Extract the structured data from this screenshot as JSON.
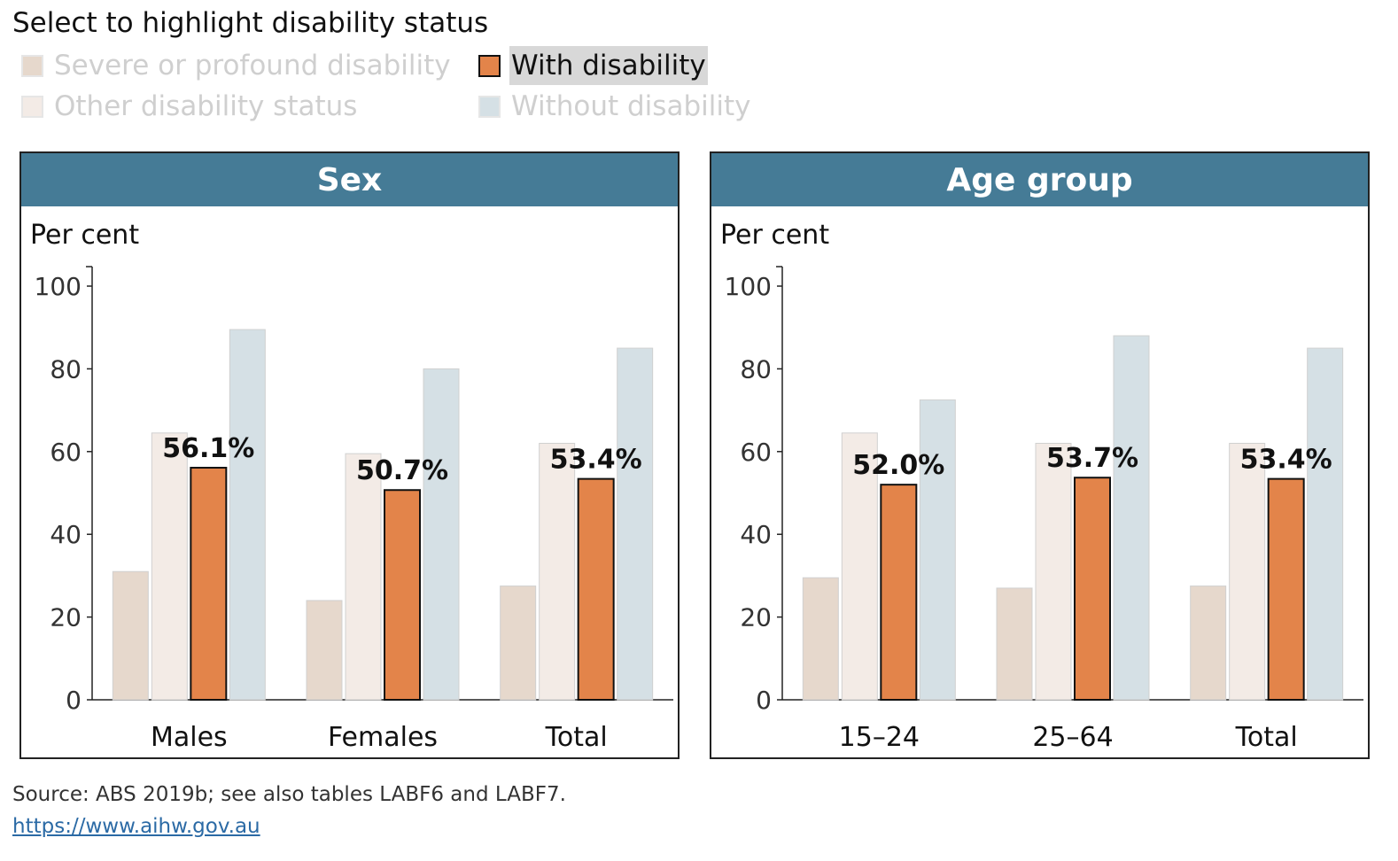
{
  "legend": {
    "title": "Select to highlight disability status",
    "items": [
      {
        "label": "Severe or profound disability",
        "color": "#e6d8cc",
        "active": false
      },
      {
        "label": "Other disability status",
        "color": "#f3ebe6",
        "active": false
      },
      {
        "label": "With disability",
        "color": "#e3844a",
        "active": true
      },
      {
        "label": "Without disability",
        "color": "#d5e0e5",
        "active": false
      }
    ]
  },
  "footer": {
    "source": "Source: ABS 2019b; see also tables LABF6 and LABF7.",
    "link": "https://www.aihw.gov.au"
  },
  "chart_data": [
    {
      "type": "bar",
      "title": "Sex",
      "ylabel": "Per cent",
      "ylim": [
        0,
        100
      ],
      "yticks": [
        0,
        20,
        40,
        60,
        80,
        100
      ],
      "categories": [
        "Males",
        "Females",
        "Total"
      ],
      "series": [
        {
          "name": "Severe or profound disability",
          "color": "#e6d8cc",
          "values": [
            31,
            24,
            27.5
          ]
        },
        {
          "name": "Other disability status",
          "color": "#f3ebe6",
          "values": [
            64.5,
            59.5,
            62
          ]
        },
        {
          "name": "With disability",
          "color": "#e3844a",
          "values": [
            56.1,
            50.7,
            53.4
          ],
          "highlight": true,
          "labels": [
            "56.1%",
            "50.7%",
            "53.4%"
          ]
        },
        {
          "name": "Without disability",
          "color": "#d5e0e5",
          "values": [
            89.5,
            80,
            85
          ]
        }
      ]
    },
    {
      "type": "bar",
      "title": "Age group",
      "ylabel": "Per cent",
      "ylim": [
        0,
        100
      ],
      "yticks": [
        0,
        20,
        40,
        60,
        80,
        100
      ],
      "categories": [
        "15–24",
        "25–64",
        "Total"
      ],
      "series": [
        {
          "name": "Severe or profound disability",
          "color": "#e6d8cc",
          "values": [
            29.5,
            27,
            27.5
          ]
        },
        {
          "name": "Other disability status",
          "color": "#f3ebe6",
          "values": [
            64.5,
            62,
            62
          ]
        },
        {
          "name": "With disability",
          "color": "#e3844a",
          "values": [
            52.0,
            53.7,
            53.4
          ],
          "highlight": true,
          "labels": [
            "52.0%",
            "53.7%",
            "53.4%"
          ]
        },
        {
          "name": "Without disability",
          "color": "#d5e0e5",
          "values": [
            72.5,
            88,
            85
          ]
        }
      ]
    }
  ]
}
